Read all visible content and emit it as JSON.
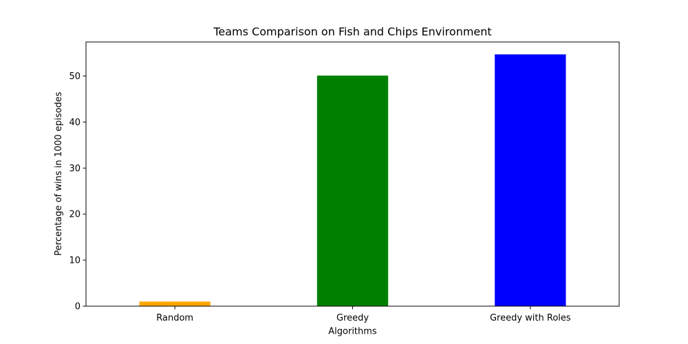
{
  "chart_data": {
    "type": "bar",
    "title": "Teams Comparison on Fish and Chips Environment",
    "xlabel": "Algorithms",
    "ylabel": "Percentage of wins in 1000 episodes",
    "categories": [
      "Random",
      "Greedy",
      "Greedy with Roles"
    ],
    "values": [
      1.0,
      50.1,
      54.7
    ],
    "colors": [
      "#ffa500",
      "#008000",
      "#0000ff"
    ],
    "ylim": [
      0,
      57.4
    ],
    "yticks": [
      0,
      10,
      20,
      30,
      40,
      50
    ],
    "grid": false,
    "legend": "none"
  }
}
